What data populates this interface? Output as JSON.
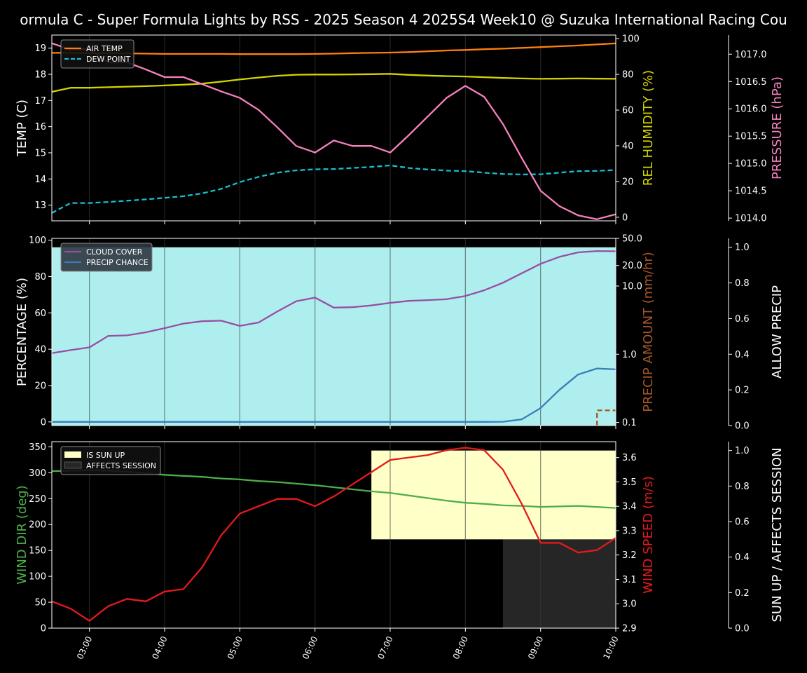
{
  "chart_data": {
    "title": "ormula C - Super Formula Lights by RSS - 2025 Season 4 2025S4 Week10 @ Suzuka International Racing Cou",
    "x_tick_labels": [
      "03:00",
      "04:00",
      "05:00",
      "06:00",
      "07:00",
      "08:00",
      "09:00",
      "10:00"
    ],
    "x_domain_hours": [
      2.5,
      10.0
    ],
    "colors": {
      "background": "#000000",
      "frame": "#ffffff",
      "grid": "#3a3a3a",
      "air_temp": "#ff7f0e",
      "dew_point": "#17becf",
      "humidity": "#d4d400",
      "pressure": "#f781bf",
      "cloud_cover": "#984ea3",
      "precip_chance": "#377eb8",
      "precip_amount": "#a65628",
      "allow_precip": "#afeeee",
      "sun_up": "#ffffc8",
      "affects_session": "#262626",
      "wind_dir": "#4daf4a",
      "wind_speed": "#e41a1c"
    },
    "panels": [
      {
        "id": "weather",
        "type": "line",
        "left_axis": {
          "label": "TEMP (C)",
          "range": [
            12.4,
            19.5
          ],
          "ticks": [
            13,
            14,
            15,
            16,
            17,
            18,
            19
          ]
        },
        "right_axis": {
          "label": "REL HUMIDITY (%)",
          "range": [
            -2,
            102
          ],
          "ticks": [
            0,
            20,
            40,
            60,
            80,
            100
          ]
        },
        "far_axis": {
          "label": "PRESSURE (hPa)",
          "range": [
            1013.95,
            1017.35
          ],
          "ticks": [
            1014.0,
            1014.5,
            1015.0,
            1015.5,
            1016.0,
            1016.5,
            1017.0
          ],
          "tick_labels": [
            "1014.0",
            "1014.5",
            "1015.0",
            "1015.5",
            "1016.0",
            "1016.5",
            "1017.0"
          ]
        },
        "legend": {
          "position": "upper-left",
          "items": [
            {
              "label": "AIR TEMP",
              "color_key": "air_temp",
              "style": "solid"
            },
            {
              "label": "DEW POINT",
              "color_key": "dew_point",
              "style": "dashed"
            }
          ]
        },
        "series": [
          {
            "name": "AIR TEMP",
            "axis": "left",
            "color_key": "air_temp",
            "style": "solid",
            "x": [
              2.5,
              2.75,
              3.0,
              3.25,
              3.5,
              3.75,
              4.0,
              4.25,
              4.5,
              4.75,
              5.0,
              5.25,
              5.5,
              5.75,
              6.0,
              6.25,
              6.5,
              6.75,
              7.0,
              7.25,
              7.5,
              7.75,
              8.0,
              8.25,
              8.5,
              8.75,
              9.0,
              9.25,
              9.5,
              9.75,
              10.0
            ],
            "y": [
              18.82,
              18.82,
              18.81,
              18.81,
              18.8,
              18.79,
              18.78,
              18.78,
              18.78,
              18.78,
              18.77,
              18.77,
              18.77,
              18.77,
              18.78,
              18.79,
              18.81,
              18.82,
              18.83,
              18.85,
              18.88,
              18.91,
              18.93,
              18.96,
              18.98,
              19.01,
              19.04,
              19.07,
              19.1,
              19.14,
              19.18
            ]
          },
          {
            "name": "DEW POINT",
            "axis": "left",
            "color_key": "dew_point",
            "style": "dashed",
            "x": [
              2.5,
              2.75,
              3.0,
              3.25,
              3.5,
              3.75,
              4.0,
              4.25,
              4.5,
              4.75,
              5.0,
              5.25,
              5.5,
              5.75,
              6.0,
              6.25,
              6.5,
              6.75,
              7.0,
              7.25,
              7.5,
              7.75,
              8.0,
              8.25,
              8.5,
              8.75,
              9.0,
              9.25,
              9.5,
              9.75,
              10.0
            ],
            "y": [
              12.7,
              13.08,
              13.08,
              13.12,
              13.17,
              13.22,
              13.28,
              13.34,
              13.45,
              13.62,
              13.88,
              14.08,
              14.24,
              14.33,
              14.37,
              14.38,
              14.42,
              14.46,
              14.52,
              14.42,
              14.36,
              14.32,
              14.3,
              14.24,
              14.19,
              14.17,
              14.18,
              14.24,
              14.3,
              14.31,
              14.34
            ]
          },
          {
            "name": "REL HUMIDITY",
            "axis": "right",
            "color_key": "humidity",
            "style": "solid",
            "x": [
              2.5,
              2.75,
              3.0,
              3.25,
              3.5,
              3.75,
              4.0,
              4.25,
              4.5,
              4.75,
              5.0,
              5.25,
              5.5,
              5.75,
              6.0,
              6.25,
              6.5,
              6.75,
              7.0,
              7.25,
              7.5,
              7.75,
              8.0,
              8.25,
              8.5,
              8.75,
              9.0,
              9.25,
              9.5,
              9.75,
              10.0
            ],
            "y": [
              70.2,
              72.5,
              72.5,
              72.8,
              73.1,
              73.4,
              73.8,
              74.2,
              74.8,
              75.9,
              77.1,
              78.2,
              79.2,
              79.8,
              79.9,
              79.9,
              80.0,
              80.1,
              80.3,
              79.7,
              79.3,
              79.0,
              78.8,
              78.4,
              78.0,
              77.7,
              77.5,
              77.6,
              77.7,
              77.6,
              77.5
            ]
          },
          {
            "name": "PRESSURE",
            "axis": "far",
            "color_key": "pressure",
            "style": "solid",
            "x": [
              2.5,
              2.75,
              3.0,
              3.25,
              3.5,
              3.75,
              4.0,
              4.25,
              4.5,
              4.75,
              5.0,
              5.25,
              5.5,
              5.75,
              6.0,
              6.25,
              6.5,
              6.75,
              7.0,
              7.25,
              7.5,
              7.75,
              8.0,
              8.25,
              8.5,
              8.75,
              9.0,
              9.25,
              9.5,
              9.75,
              10.0
            ],
            "y": [
              1017.2,
              1017.08,
              1017.1,
              1016.85,
              1016.85,
              1016.72,
              1016.58,
              1016.58,
              1016.45,
              1016.32,
              1016.2,
              1015.98,
              1015.66,
              1015.32,
              1015.2,
              1015.42,
              1015.32,
              1015.32,
              1015.2,
              1015.52,
              1015.86,
              1016.2,
              1016.42,
              1016.22,
              1015.72,
              1015.1,
              1014.5,
              1014.22,
              1014.05,
              1013.98,
              1014.07
            ]
          }
        ]
      },
      {
        "id": "cloud",
        "type": "line",
        "left_axis": {
          "label": "PERCENTAGE (%)",
          "range": [
            -2,
            101
          ],
          "ticks": [
            0,
            20,
            40,
            60,
            80,
            100
          ]
        },
        "right_axis": {
          "label": "PRECIP AMOUNT (mm/hr)",
          "scale": "log",
          "range": [
            0.09,
            50
          ],
          "ticks": [
            0.1,
            1.0,
            10.0,
            20.0,
            50.0
          ],
          "tick_labels": [
            "0.1",
            "1.0",
            "10.0",
            "20.0",
            "50.0"
          ]
        },
        "far_axis": {
          "label": "ALLOW PRECIP",
          "range": [
            0,
            1.05
          ],
          "ticks": [
            0,
            0.2,
            0.4,
            0.6,
            0.8,
            1.0
          ],
          "tick_labels": [
            "0.0",
            "0.2",
            "0.4",
            "0.6",
            "0.8",
            "1.0"
          ]
        },
        "legend": {
          "position": "upper-left",
          "items": [
            {
              "label": "CLOUD COVER",
              "color_key": "cloud_cover",
              "style": "solid"
            },
            {
              "label": "PRECIP CHANCE",
              "color_key": "precip_chance",
              "style": "solid"
            }
          ]
        },
        "allow_precip": {
          "value": 1.0,
          "color_key": "allow_precip",
          "x_range": [
            2.5,
            10.0
          ]
        },
        "series": [
          {
            "name": "CLOUD COVER",
            "axis": "left",
            "color_key": "cloud_cover",
            "style": "solid",
            "x": [
              2.5,
              2.75,
              3.0,
              3.25,
              3.5,
              3.75,
              4.0,
              4.25,
              4.5,
              4.75,
              5.0,
              5.25,
              5.5,
              5.75,
              6.0,
              6.25,
              6.5,
              6.75,
              7.0,
              7.25,
              7.5,
              7.75,
              8.0,
              8.25,
              8.5,
              8.75,
              9.0,
              9.25,
              9.5,
              9.75,
              10.0
            ],
            "y": [
              37.8,
              39.5,
              41,
              47.3,
              47.6,
              49.3,
              51.6,
              54.1,
              55.4,
              55.7,
              52.8,
              54.7,
              60.8,
              66.4,
              68.4,
              62.9,
              63.1,
              64.1,
              65.5,
              66.6,
              67.0,
              67.5,
              69.3,
              72.4,
              76.6,
              81.8,
              87.0,
              90.8,
              93.3,
              94.0,
              93.9
            ]
          },
          {
            "name": "PRECIP CHANCE",
            "axis": "left",
            "color_key": "precip_chance",
            "style": "solid",
            "x": [
              2.5,
              2.75,
              3.0,
              3.25,
              3.5,
              3.75,
              4.0,
              4.25,
              4.5,
              4.75,
              5.0,
              5.25,
              5.5,
              5.75,
              6.0,
              6.25,
              6.5,
              6.75,
              7.0,
              7.25,
              7.5,
              7.75,
              8.0,
              8.25,
              8.5,
              8.75,
              9.0,
              9.25,
              9.5,
              9.75,
              10.0
            ],
            "y": [
              0,
              0,
              0,
              0,
              0,
              0,
              0,
              0,
              0,
              0,
              0,
              0,
              0,
              0,
              0,
              0,
              0,
              0,
              0,
              0,
              0,
              0,
              0,
              0,
              0.1,
              1.4,
              7.6,
              17.6,
              26.1,
              29.4,
              28.9
            ]
          },
          {
            "name": "PRECIP AMOUNT",
            "axis": "right",
            "color_key": "precip_amount",
            "style": "dashed",
            "x": [
              9.75,
              9.75,
              10.0
            ],
            "y": [
              0.09,
              0.15,
              0.15
            ]
          }
        ]
      },
      {
        "id": "wind",
        "type": "line",
        "left_axis": {
          "label": "WIND DIR (deg)",
          "range": [
            0,
            360
          ],
          "ticks": [
            0,
            50,
            100,
            150,
            200,
            250,
            300,
            350
          ]
        },
        "right_axis": {
          "label": "WIND SPEED (m/s)",
          "range": [
            2.9,
            3.665
          ],
          "ticks": [
            2.9,
            3.0,
            3.1,
            3.2,
            3.3,
            3.4,
            3.5,
            3.6
          ],
          "tick_labels": [
            "2.9",
            "3.0",
            "3.1",
            "3.2",
            "3.3",
            "3.4",
            "3.5",
            "3.6"
          ]
        },
        "far_axis": {
          "label": "SUN UP / AFFECTS SESSION",
          "range": [
            0,
            1.05
          ],
          "ticks": [
            0,
            0.2,
            0.4,
            0.6,
            0.8,
            1.0
          ],
          "tick_labels": [
            "0.0",
            "0.2",
            "0.4",
            "0.6",
            "0.8",
            "1.0"
          ]
        },
        "legend": {
          "position": "upper-left",
          "items": [
            {
              "label": "IS SUN UP",
              "color_key": "sun_up",
              "style": "patch"
            },
            {
              "label": "AFFECTS SESSION",
              "color_key": "affects_session",
              "style": "patch"
            }
          ]
        },
        "affects_session": {
          "x_start": 8.5,
          "x_end": 10.0,
          "value": 0.5,
          "color_key": "affects_session"
        },
        "sun_up": {
          "x_start": 6.75,
          "x_end": 10.0,
          "value_low": 0.5,
          "value_high": 1.0,
          "color_key": "sun_up"
        },
        "series": [
          {
            "name": "WIND DIR",
            "axis": "left",
            "color_key": "wind_dir",
            "style": "solid",
            "x": [
              2.5,
              2.75,
              3.0,
              3.25,
              3.5,
              3.75,
              4.0,
              4.25,
              4.5,
              4.75,
              5.0,
              5.25,
              5.5,
              5.75,
              6.0,
              6.25,
              6.5,
              6.75,
              7.0,
              7.25,
              7.5,
              7.75,
              8.0,
              8.25,
              8.5,
              8.75,
              9.0,
              9.25,
              9.5,
              9.75,
              10.0
            ],
            "y": [
              303,
              304,
              305,
              304,
              302,
              299,
              296,
              294,
              292,
              289,
              287,
              284,
              282,
              279,
              276,
              272,
              268,
              264,
              261,
              256,
              251,
              246,
              242,
              240,
              237,
              236,
              234,
              235,
              236,
              234,
              232
            ]
          },
          {
            "name": "WIND SPEED",
            "axis": "right",
            "color_key": "wind_speed",
            "style": "solid",
            "x": [
              2.5,
              2.75,
              3.0,
              3.25,
              3.5,
              3.75,
              4.0,
              4.25,
              4.5,
              4.75,
              5.0,
              5.25,
              5.5,
              5.75,
              6.0,
              6.25,
              6.5,
              6.75,
              7.0,
              7.25,
              7.5,
              7.75,
              8.0,
              8.25,
              8.5,
              8.75,
              9.0,
              9.25,
              9.5,
              9.75,
              10.0
            ],
            "y": [
              3.01,
              2.98,
              2.93,
              2.99,
              3.02,
              3.01,
              3.05,
              3.06,
              3.15,
              3.28,
              3.37,
              3.4,
              3.43,
              3.43,
              3.4,
              3.44,
              3.49,
              3.54,
              3.59,
              3.6,
              3.61,
              3.63,
              3.64,
              3.63,
              3.55,
              3.41,
              3.25,
              3.25,
              3.21,
              3.22,
              3.27
            ]
          }
        ]
      }
    ]
  }
}
